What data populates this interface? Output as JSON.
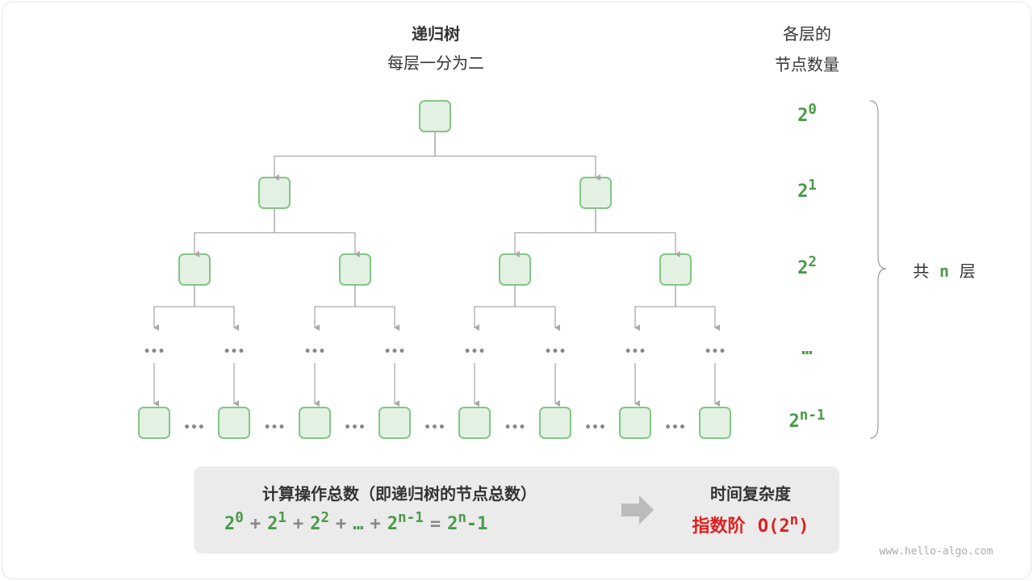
{
  "title": "递归树",
  "subtitle": "每层一分为二",
  "count_header": [
    "各层的",
    "节点数量"
  ],
  "level_labels": [
    {
      "base": "2",
      "exp": "0"
    },
    {
      "base": "2",
      "exp": "1"
    },
    {
      "base": "2",
      "exp": "2"
    },
    {
      "base": "…",
      "exp": ""
    },
    {
      "base": "2",
      "exp": "n-1"
    }
  ],
  "total_layers": {
    "pre": "共",
    "n": "n",
    "post": "层"
  },
  "ellipsis": "•••",
  "summary": {
    "title": "计算操作总数（即递归树的节点总数）",
    "terms": [
      {
        "base": "2",
        "exp": "0"
      },
      {
        "base": "2",
        "exp": "1"
      },
      {
        "base": "2",
        "exp": "2"
      },
      {
        "base": "…",
        "exp": ""
      },
      {
        "base": "2",
        "exp": "n-1"
      }
    ],
    "plus": "+",
    "equals": "=",
    "result": {
      "base": "2",
      "exp": "n",
      "tail": "-1"
    },
    "complexity_title": "时间复杂度",
    "complexity": {
      "name": "指数阶",
      "expr_pre": "O(2",
      "exp": "n",
      "expr_post": ")"
    }
  },
  "watermark": "www.hello-algo.com",
  "colors": {
    "node_fill": "#e3f1e3",
    "node_stroke": "#82c785",
    "edge": "#aaaaaa",
    "accent": "#4a9a4a",
    "red": "#e02020"
  }
}
